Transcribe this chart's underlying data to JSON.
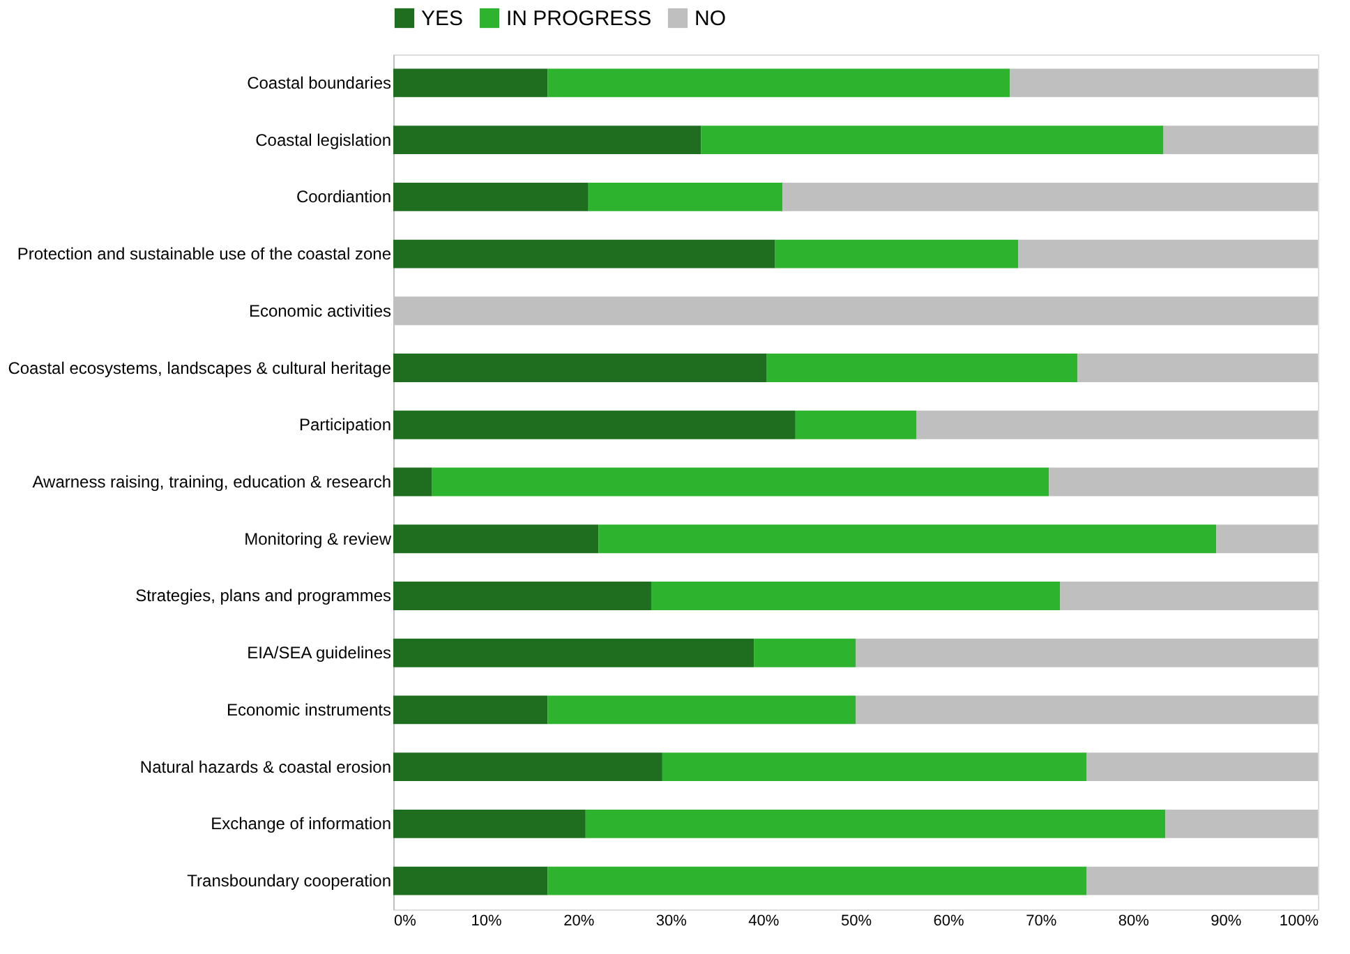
{
  "chart_data": {
    "type": "bar",
    "orientation": "horizontal",
    "stacked": true,
    "categories": [
      "Coastal boundaries",
      "Coastal legislation",
      "Coordiantion",
      "Protection and sustainable  use of the coastal zone",
      "Economic activities",
      "Coastal ecosystems, landscapes & cultural heritage",
      "Participation",
      "Awarness raising, training, education & research",
      "Monitoring & review",
      "Strategies, plans and programmes",
      "EIA/SEA guidelines",
      "Economic  instruments",
      "Natural hazards & coastal erosion",
      "Exchange of information",
      "Transboundary cooperation"
    ],
    "series": [
      {
        "name": "YES",
        "color": "#1f6e1f",
        "values": [
          16.7,
          33.3,
          21.1,
          41.3,
          0,
          40.4,
          43.5,
          4.2,
          22.2,
          27.9,
          39,
          16.7,
          29.1,
          20.8,
          16.7
        ]
      },
      {
        "name": "IN PROGRESS",
        "color": "#2db32d",
        "values": [
          50,
          50,
          21,
          26.3,
          0,
          33.6,
          13.1,
          66.7,
          66.8,
          44.2,
          11,
          33.3,
          45.9,
          62.7,
          58.3
        ]
      },
      {
        "name": "NO",
        "color": "#bfbfbf",
        "values": [
          33.3,
          16.7,
          57.9,
          32.4,
          100,
          26,
          43.4,
          29.1,
          11,
          27.9,
          50,
          50,
          25,
          16.5,
          25
        ]
      }
    ],
    "xlim": [
      0,
      100
    ],
    "xticks": [
      {
        "value": 0,
        "label": "0%"
      },
      {
        "value": 10,
        "label": "10%"
      },
      {
        "value": 20,
        "label": "20%"
      },
      {
        "value": 30,
        "label": "30%"
      },
      {
        "value": 40,
        "label": "40%"
      },
      {
        "value": 50,
        "label": "50%"
      },
      {
        "value": 60,
        "label": "60%"
      },
      {
        "value": 70,
        "label": "70%"
      },
      {
        "value": 80,
        "label": "80%"
      },
      {
        "value": 90,
        "label": "90%"
      },
      {
        "value": 100,
        "label": "100%"
      }
    ],
    "grid": false,
    "legend": "top"
  }
}
